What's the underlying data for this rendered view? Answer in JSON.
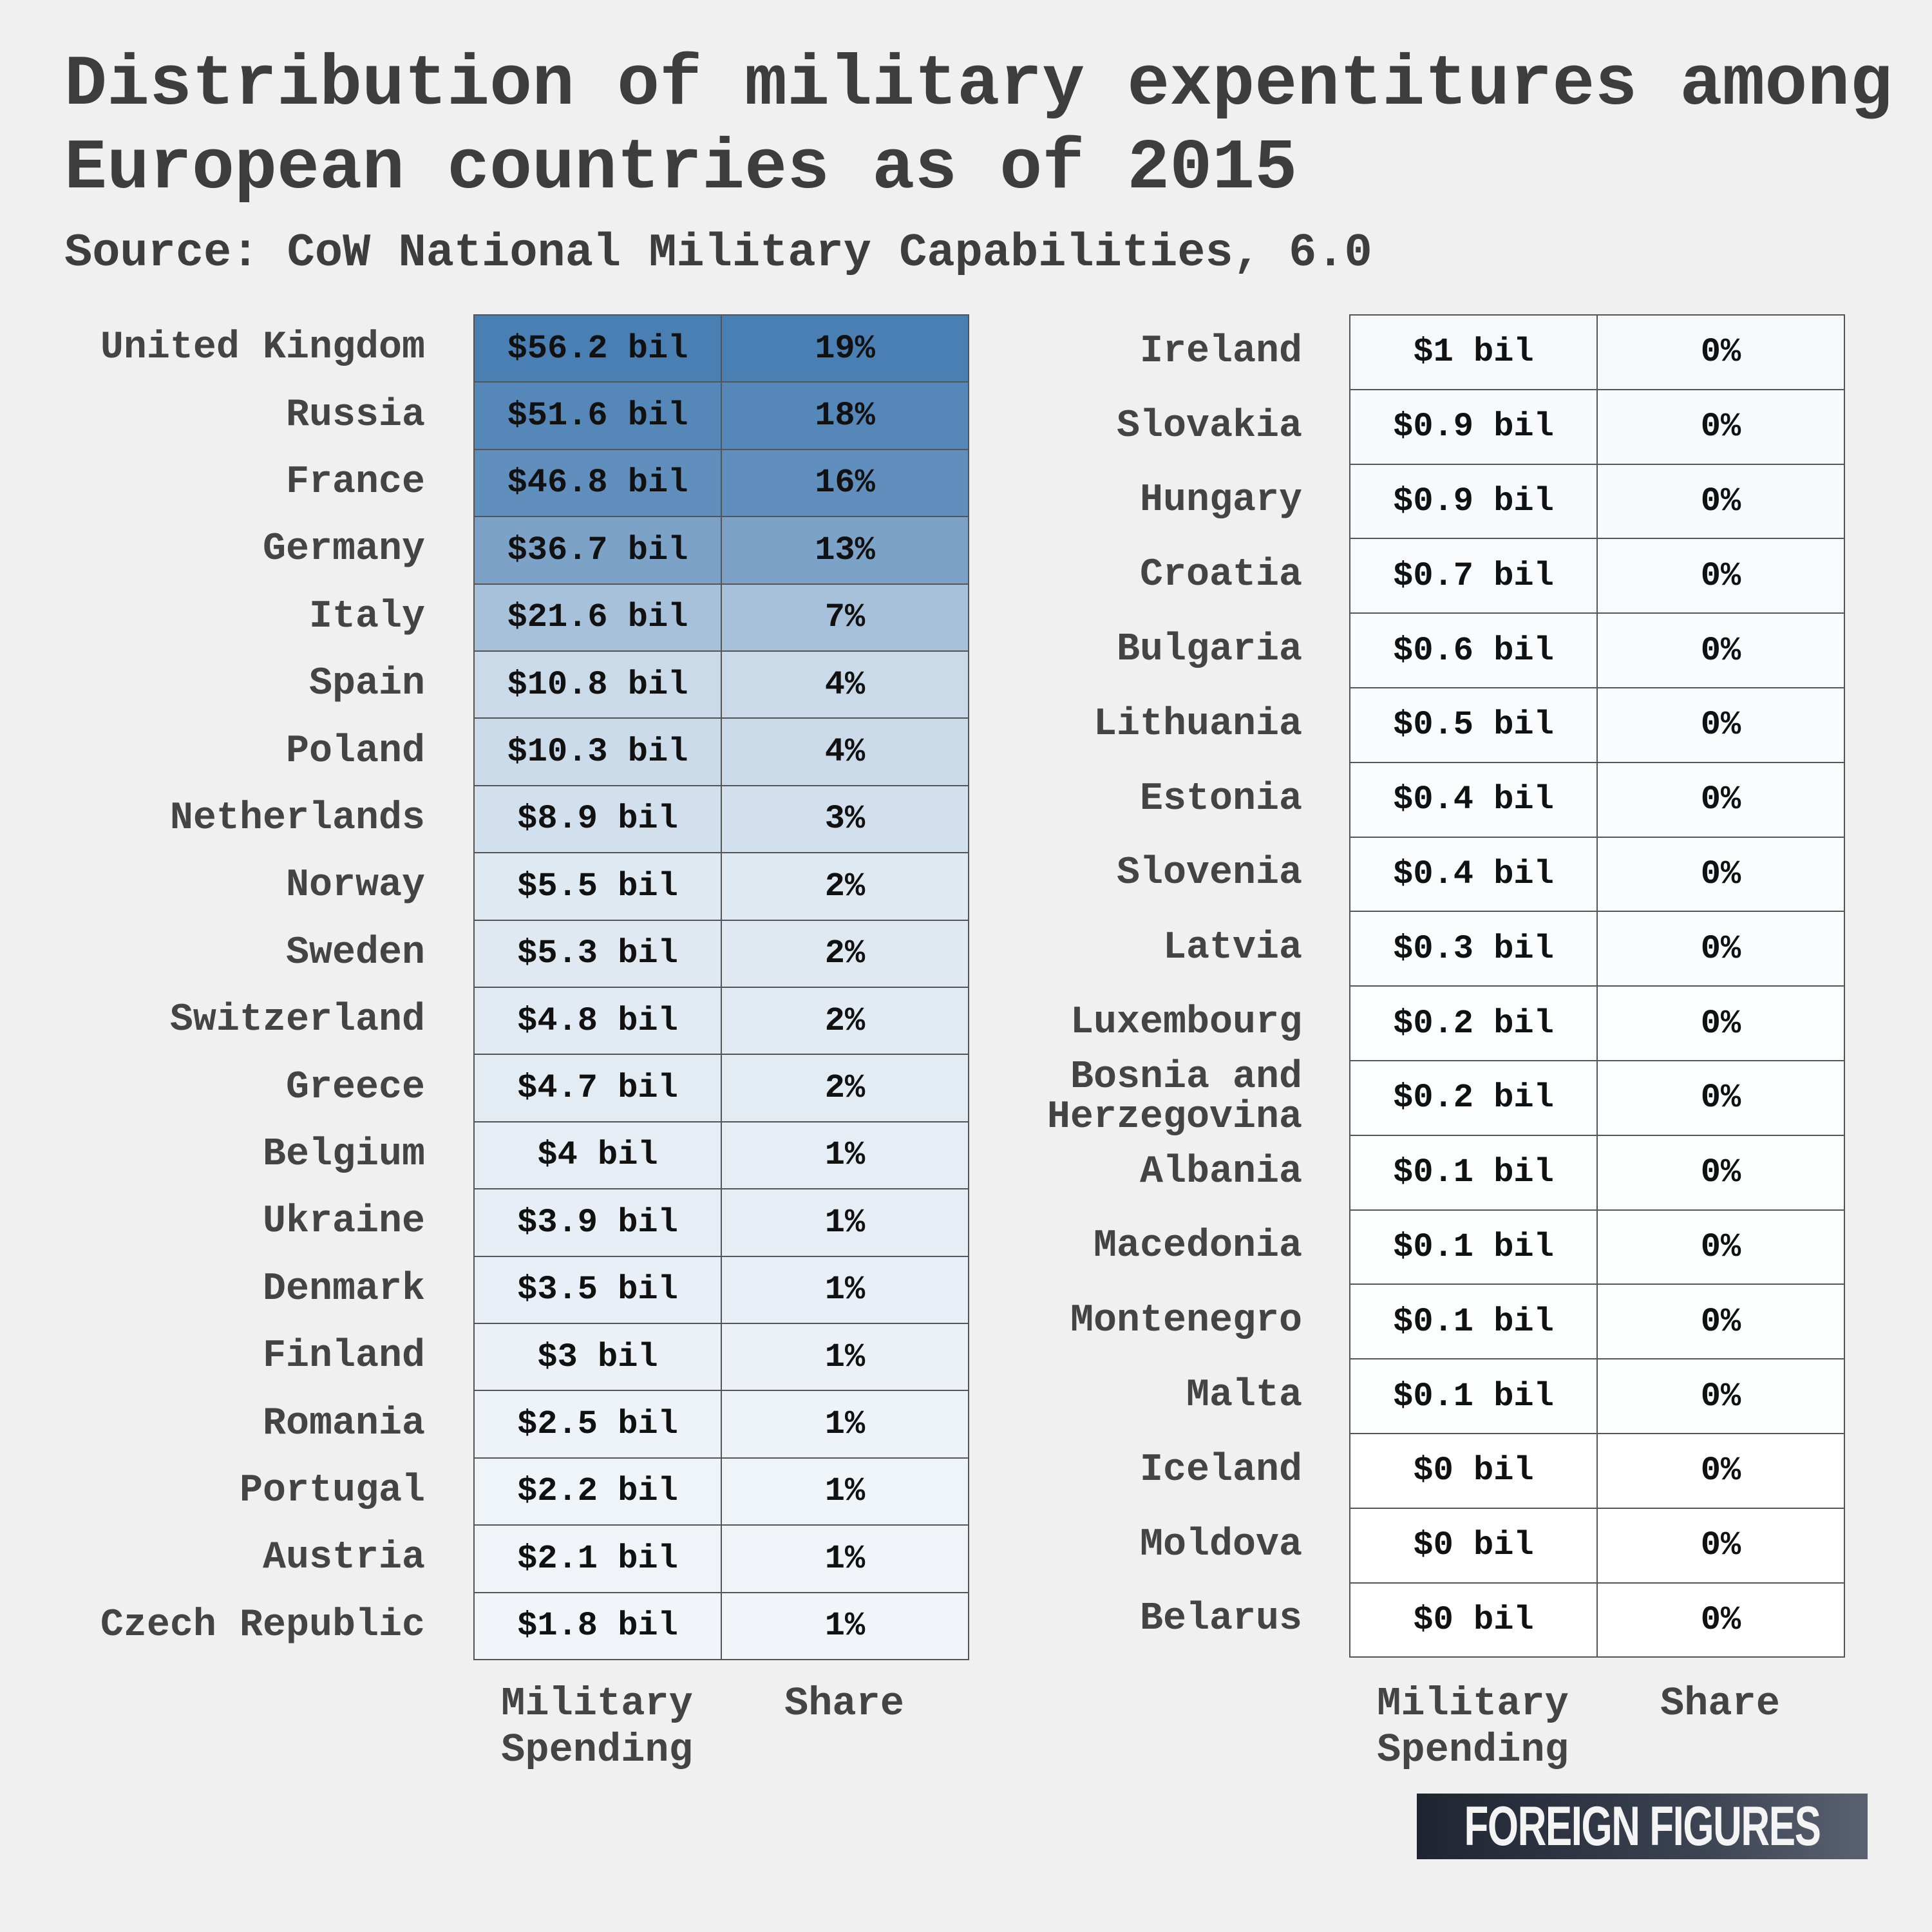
{
  "title": "Distribution of military expentitures among European countries as of 2015",
  "source": "Source: CoW National Military Capabilities, 6.0",
  "brand": "FOREIGN FIGURES",
  "column_headers": {
    "spending": "Military Spending",
    "spending_line1": "Military",
    "spending_line2": "Spending",
    "share": "Share"
  },
  "chart_data": {
    "type": "table",
    "title": "Distribution of military expentitures among European countries as of 2015",
    "columns": [
      "Military Spending",
      "Share"
    ],
    "colors": {
      "max": "#4a7fb3",
      "min": "#ffffff",
      "border": "#555555"
    },
    "left_rows": [
      {
        "country": "United Kingdom",
        "spending": "$56.2 bil",
        "share": "19%",
        "value": 56.2
      },
      {
        "country": "Russia",
        "spending": "$51.6 bil",
        "share": "18%",
        "value": 51.6
      },
      {
        "country": "France",
        "spending": "$46.8 bil",
        "share": "16%",
        "value": 46.8
      },
      {
        "country": "Germany",
        "spending": "$36.7 bil",
        "share": "13%",
        "value": 36.7
      },
      {
        "country": "Italy",
        "spending": "$21.6 bil",
        "share": "7%",
        "value": 21.6
      },
      {
        "country": "Spain",
        "spending": "$10.8 bil",
        "share": "4%",
        "value": 10.8
      },
      {
        "country": "Poland",
        "spending": "$10.3 bil",
        "share": "4%",
        "value": 10.3
      },
      {
        "country": "Netherlands",
        "spending": "$8.9 bil",
        "share": "3%",
        "value": 8.9
      },
      {
        "country": "Norway",
        "spending": "$5.5 bil",
        "share": "2%",
        "value": 5.5
      },
      {
        "country": "Sweden",
        "spending": "$5.3 bil",
        "share": "2%",
        "value": 5.3
      },
      {
        "country": "Switzerland",
        "spending": "$4.8 bil",
        "share": "2%",
        "value": 4.8
      },
      {
        "country": "Greece",
        "spending": "$4.7 bil",
        "share": "2%",
        "value": 4.7
      },
      {
        "country": "Belgium",
        "spending": "$4 bil",
        "share": "1%",
        "value": 4.0
      },
      {
        "country": "Ukraine",
        "spending": "$3.9 bil",
        "share": "1%",
        "value": 3.9
      },
      {
        "country": "Denmark",
        "spending": "$3.5 bil",
        "share": "1%",
        "value": 3.5
      },
      {
        "country": "Finland",
        "spending": "$3 bil",
        "share": "1%",
        "value": 3.0
      },
      {
        "country": "Romania",
        "spending": "$2.5 bil",
        "share": "1%",
        "value": 2.5
      },
      {
        "country": "Portugal",
        "spending": "$2.2 bil",
        "share": "1%",
        "value": 2.2
      },
      {
        "country": "Austria",
        "spending": "$2.1 bil",
        "share": "1%",
        "value": 2.1
      },
      {
        "country": "Czech Republic",
        "spending": "$1.8 bil",
        "share": "1%",
        "value": 1.8
      }
    ],
    "right_rows": [
      {
        "country": "Ireland",
        "spending": "$1 bil",
        "share": "0%",
        "value": 1.0
      },
      {
        "country": "Slovakia",
        "spending": "$0.9 bil",
        "share": "0%",
        "value": 0.9
      },
      {
        "country": "Hungary",
        "spending": "$0.9 bil",
        "share": "0%",
        "value": 0.9
      },
      {
        "country": "Croatia",
        "spending": "$0.7 bil",
        "share": "0%",
        "value": 0.7
      },
      {
        "country": "Bulgaria",
        "spending": "$0.6 bil",
        "share": "0%",
        "value": 0.6
      },
      {
        "country": "Lithuania",
        "spending": "$0.5 bil",
        "share": "0%",
        "value": 0.5
      },
      {
        "country": "Estonia",
        "spending": "$0.4 bil",
        "share": "0%",
        "value": 0.4
      },
      {
        "country": "Slovenia",
        "spending": "$0.4 bil",
        "share": "0%",
        "value": 0.4
      },
      {
        "country": "Latvia",
        "spending": "$0.3 bil",
        "share": "0%",
        "value": 0.3
      },
      {
        "country": "Luxembourg",
        "spending": "$0.2 bil",
        "share": "0%",
        "value": 0.2
      },
      {
        "country": "Bosnia and Herzegovina",
        "spending": "$0.2 bil",
        "share": "0%",
        "value": 0.2
      },
      {
        "country": "Albania",
        "spending": "$0.1 bil",
        "share": "0%",
        "value": 0.1
      },
      {
        "country": "Macedonia",
        "spending": "$0.1 bil",
        "share": "0%",
        "value": 0.1
      },
      {
        "country": "Montenegro",
        "spending": "$0.1 bil",
        "share": "0%",
        "value": 0.1
      },
      {
        "country": "Malta",
        "spending": "$0.1 bil",
        "share": "0%",
        "value": 0.1
      },
      {
        "country": "Iceland",
        "spending": "$0 bil",
        "share": "0%",
        "value": 0.0
      },
      {
        "country": "Moldova",
        "spending": "$0 bil",
        "share": "0%",
        "value": 0.0
      },
      {
        "country": "Belarus",
        "spending": "$0 bil",
        "share": "0%",
        "value": 0.0
      }
    ]
  }
}
